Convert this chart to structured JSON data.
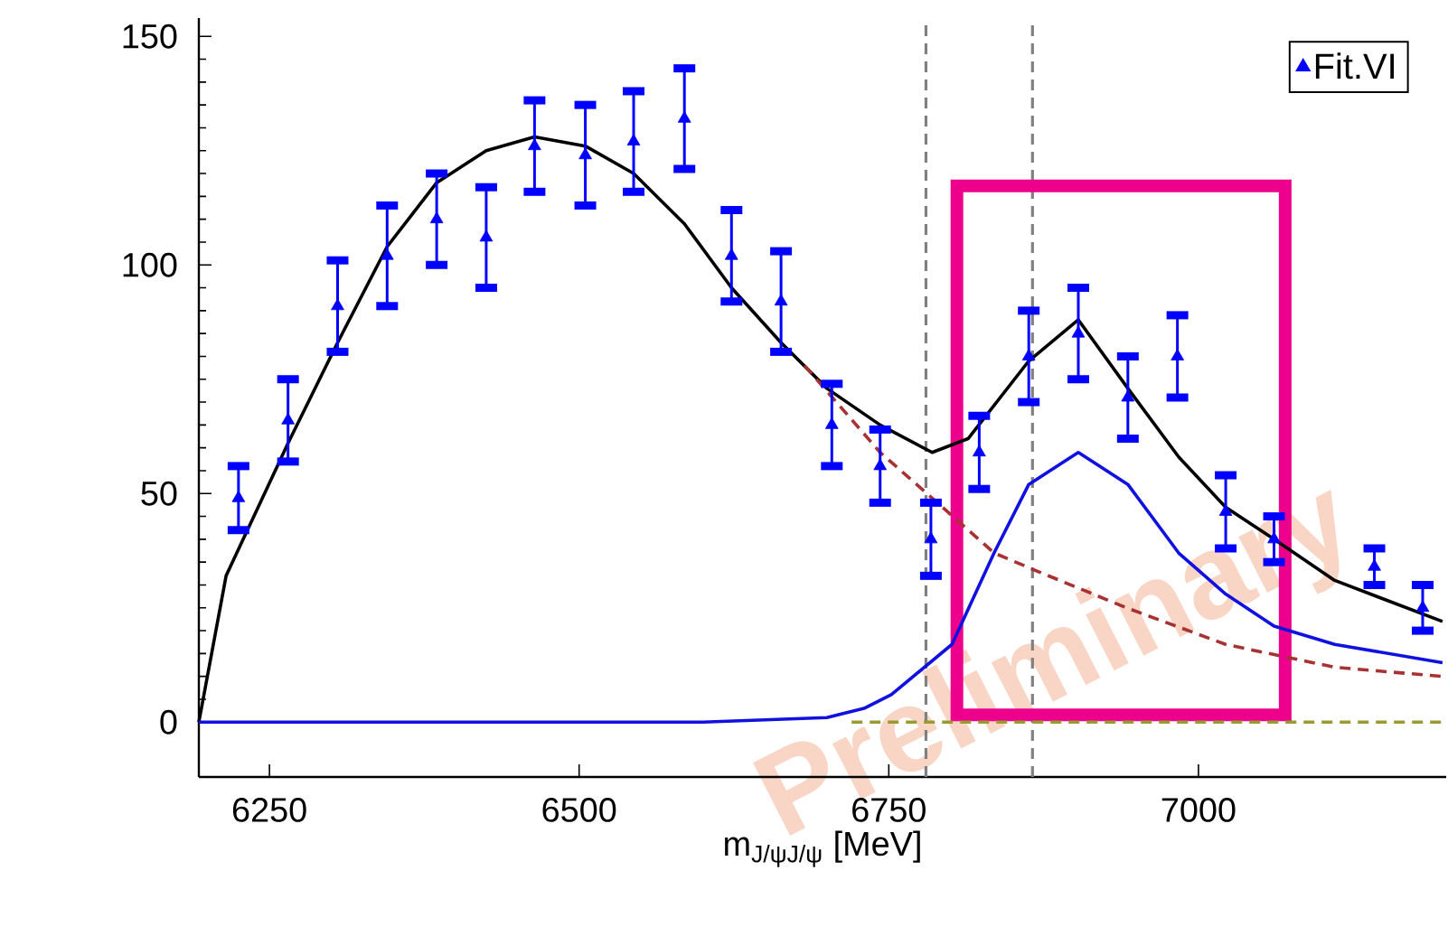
{
  "chart_data": {
    "type": "scatter",
    "xlabel": "m$_{J/ψJ/ψ}$ [MeV]",
    "xlim": [
      6193,
      7200
    ],
    "ylim": [
      -12,
      154
    ],
    "xticks": [
      6250,
      6500,
      6750,
      7000
    ],
    "yticks": [
      0,
      50,
      100,
      150
    ],
    "legend": "top right",
    "annotations": [
      "Preliminary"
    ],
    "ref_lines": [
      {
        "axis": "x",
        "value": 6780,
        "color": "#808080",
        "line_style": "dashed"
      },
      {
        "axis": "x",
        "value": 6866,
        "color": "#808080",
        "line_style": "dashed"
      }
    ],
    "series": [
      {
        "type": "line",
        "color": "#000000",
        "x": [
          6193,
          6215,
          6265,
          6305,
          6345,
          6385,
          6425,
          6464,
          6505,
          6544,
          6585,
          6623,
          6663,
          6700,
          6743,
          6785,
          6814,
          6863,
          6903,
          6943,
          6984,
          7022,
          7061,
          7110,
          7197
        ],
        "values": [
          0,
          32,
          61,
          83,
          104,
          118,
          125,
          128,
          126,
          120,
          109,
          95,
          83,
          73,
          65,
          59,
          62,
          79,
          88,
          73,
          58,
          47,
          40,
          31,
          22
        ]
      },
      {
        "type": "line",
        "color": "#a83232",
        "line_style": "dashed",
        "x": [
          6682,
          6743,
          6785,
          6835,
          6870,
          6942,
          7022,
          7110,
          7197
        ],
        "values": [
          78,
          59,
          49,
          37,
          33,
          25,
          17,
          12,
          10
        ]
      },
      {
        "type": "line",
        "color": "#9a9a30",
        "line_style": "dashed",
        "x": [
          6720,
          7200
        ],
        "values": [
          0,
          0
        ]
      },
      {
        "type": "line",
        "color": "#1010e0",
        "x": [
          6193,
          6600,
          6700,
          6730,
          6752,
          6801,
          6835,
          6863,
          6903,
          6943,
          6984,
          7022,
          7061,
          7110,
          7197
        ],
        "values": [
          0,
          0,
          1,
          3,
          6,
          17,
          37,
          52,
          59,
          52,
          37,
          28,
          21,
          17,
          13
        ]
      },
      {
        "name": "Fit.VI",
        "color": "#0000ff",
        "marker": "triangle",
        "x": [
          6225,
          6265,
          6305,
          6345,
          6385,
          6425,
          6464,
          6505,
          6544,
          6585,
          6623,
          6663,
          6704,
          6743,
          6784,
          6823,
          6863,
          6903,
          6943,
          6983,
          7022,
          7061,
          7142,
          7181
        ],
        "values": [
          49,
          66,
          91,
          102,
          110,
          106,
          126,
          124,
          127,
          132,
          102,
          92,
          65,
          56,
          40,
          59,
          80,
          85,
          71,
          80,
          46,
          40,
          34,
          25
        ],
        "errors": [
          7,
          9,
          10,
          11,
          10,
          11,
          10,
          11,
          11,
          11,
          10,
          11,
          9,
          8,
          8,
          8,
          10,
          10,
          9,
          9,
          8,
          5,
          4,
          5
        ]
      }
    ]
  }
}
